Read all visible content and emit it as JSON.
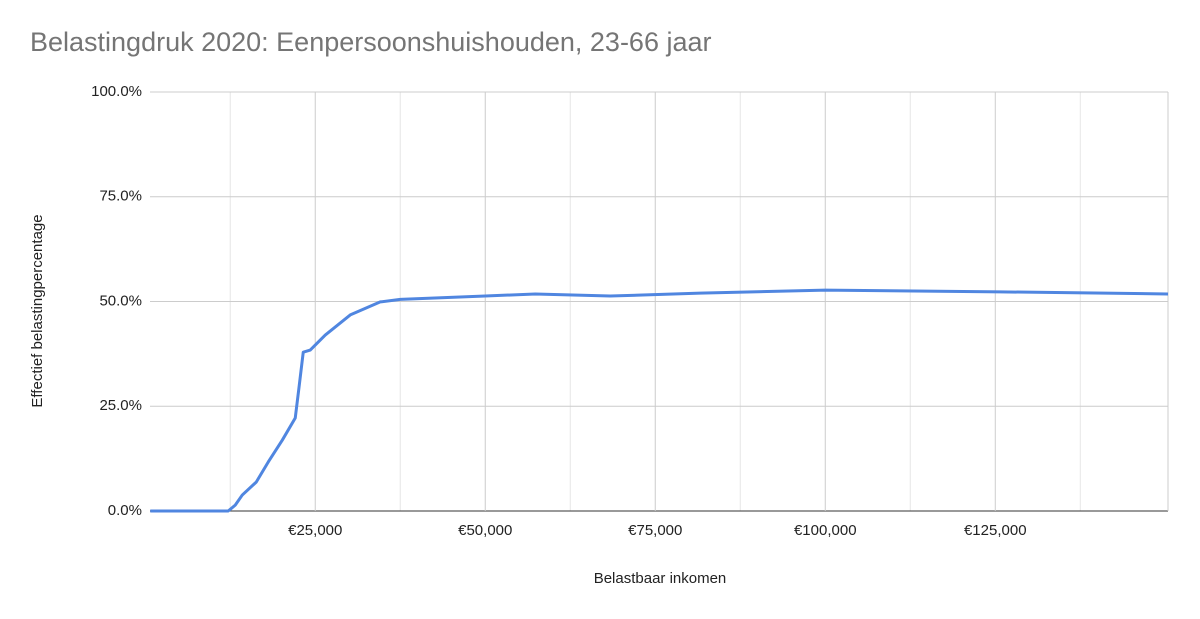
{
  "chart_data": {
    "type": "line",
    "title": "Belastingdruk 2020: Eenpersoonshuishouden, 23-66 jaar",
    "x_label": "Belastbaar inkomen",
    "y_label": "Effectief belastingpercentage",
    "color": "#5086e0",
    "x": [
      735,
      12200,
      13235,
      14265,
      16320,
      18090,
      20150,
      22060,
      22650,
      23235,
      24265,
      26470,
      30150,
      34560,
      37500,
      50000,
      57350,
      68380,
      81600,
      100000,
      125700,
      150400
    ],
    "values": [
      0,
      0,
      1.4,
      3.8,
      6.9,
      11.7,
      16.9,
      22.2,
      30,
      37.9,
      38.4,
      42,
      46.8,
      49.9,
      50.5,
      51.3,
      51.8,
      51.3,
      52,
      52.7,
      52.3,
      51.8
    ],
    "xlim": [
      700,
      150400
    ],
    "xticks": [
      {
        "value": 25000,
        "label": "€25,000"
      },
      {
        "value": 50000,
        "label": "€50,000"
      },
      {
        "value": 75000,
        "label": "€75,000"
      },
      {
        "value": 100000,
        "label": "€100,000"
      },
      {
        "value": 125000,
        "label": "€125,000"
      }
    ],
    "x_minor_gridlines": [
      12500,
      37500,
      62500,
      87500,
      112500,
      137500
    ],
    "ylim": [
      0,
      100
    ],
    "yticks": [
      {
        "value": 0,
        "label": "0.0%"
      },
      {
        "value": 25,
        "label": "25.0%"
      },
      {
        "value": 50,
        "label": "50.0%"
      },
      {
        "value": 75,
        "label": "75.0%"
      },
      {
        "value": 100,
        "label": "100.0%"
      }
    ],
    "grid": true
  }
}
